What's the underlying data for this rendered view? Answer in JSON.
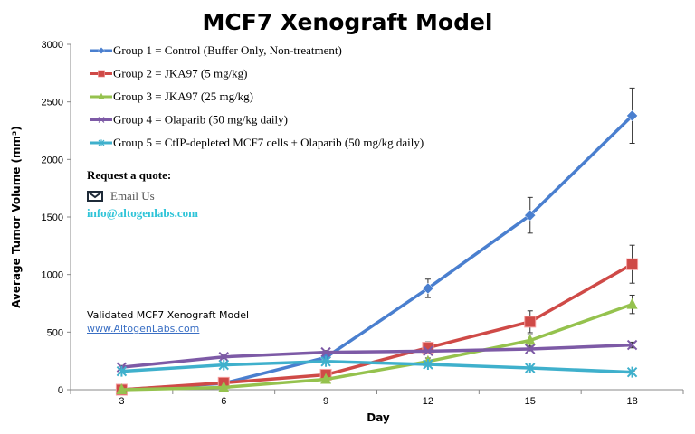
{
  "chart_data": {
    "type": "line",
    "title": "MCF7 Xenograft Model",
    "xlabel": "Day",
    "ylabel": "Average Tumor Volume (mm³)",
    "categories": [
      "3",
      "6",
      "9",
      "12",
      "15",
      "18"
    ],
    "ylim": [
      0,
      3000
    ],
    "yticks": [
      "0",
      "500",
      "1000",
      "1500",
      "2000",
      "2500",
      "3000"
    ],
    "grid": false,
    "legend_placement": "top-left",
    "series": [
      {
        "name": "Group 1 = Control (Buffer Only, Non-treatment)",
        "color": "#4a7fcf",
        "marker": "diamond",
        "values": [
          0,
          55,
          280,
          880,
          1515,
          2380
        ],
        "errors": [
          0,
          10,
          20,
          80,
          155,
          240
        ]
      },
      {
        "name": "Group 2 = JKA97 (5 mg/kg)",
        "color": "#cf4a47",
        "marker": "square",
        "values": [
          0,
          60,
          130,
          365,
          590,
          1090
        ],
        "errors": [
          0,
          10,
          15,
          50,
          95,
          165
        ]
      },
      {
        "name": "Group 3 = JKA97 (25 mg/kg)",
        "color": "#95c24e",
        "marker": "triangle",
        "values": [
          0,
          20,
          90,
          245,
          428,
          741
        ],
        "errors": [
          0,
          10,
          15,
          30,
          50,
          80
        ]
      },
      {
        "name": "Group 4 =  Olaparib (50 mg/kg daily)",
        "color": "#7d5aa6",
        "marker": "x",
        "values": [
          195,
          285,
          325,
          335,
          353,
          388
        ],
        "errors": [
          15,
          15,
          15,
          15,
          15,
          25
        ]
      },
      {
        "name": "Group 5 = CtIP-depleted MCF7 cells + Olaparib (50 mg/kg daily)",
        "color": "#3fb0cc",
        "marker": "star",
        "values": [
          160,
          215,
          245,
          220,
          188,
          152
        ],
        "errors": [
          10,
          10,
          10,
          10,
          10,
          10
        ]
      }
    ]
  },
  "annotations": {
    "quote_title": "Request a quote:",
    "email_label": "Email Us",
    "email_icon": "envelope-icon",
    "email_address": "info@altogenlabs.com",
    "validated_text": "Validated MCF7 Xenograft Model",
    "link_text": "www.AltogenLabs.com"
  }
}
